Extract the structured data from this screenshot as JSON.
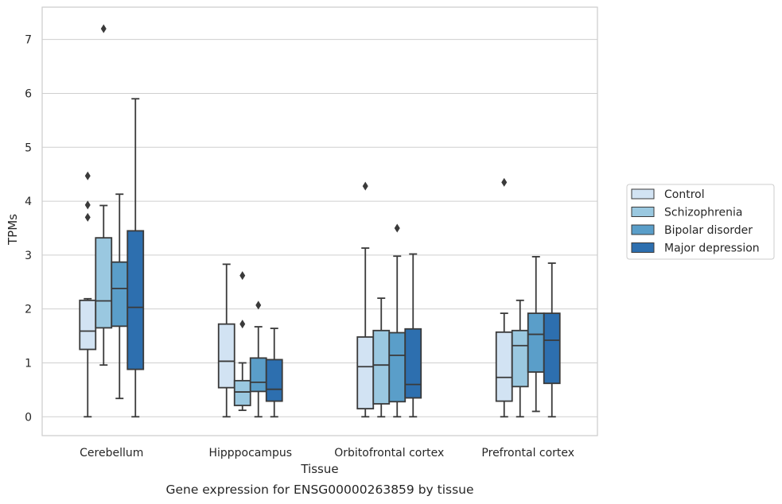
{
  "chart_data": {
    "type": "box",
    "title": "",
    "caption": "Gene expression for ENSG00000263859 by tissue",
    "xlabel": "Tissue",
    "ylabel": "TPMs",
    "ylim": [
      -0.35,
      7.6
    ],
    "yticks": [
      0,
      1,
      2,
      3,
      4,
      5,
      6,
      7
    ],
    "grid": "horizontal",
    "legend_position": "right",
    "categories": [
      "Cerebellum",
      "Hipppocampus",
      "Orbitofrontal cortex",
      "Prefrontal cortex"
    ],
    "series": [
      {
        "name": "Control",
        "color": "#d2e3f3",
        "boxes": [
          {
            "whislo": 0.0,
            "q1": 1.25,
            "med": 1.59,
            "q3": 2.16,
            "whishi": 2.19,
            "fliers": [
              3.7,
              3.93,
              4.47
            ]
          },
          {
            "whislo": 0.0,
            "q1": 0.54,
            "med": 1.03,
            "q3": 1.72,
            "whishi": 2.83,
            "fliers": []
          },
          {
            "whislo": 0.0,
            "q1": 0.15,
            "med": 0.93,
            "q3": 1.48,
            "whishi": 3.13,
            "fliers": [
              4.28
            ]
          },
          {
            "whislo": 0.0,
            "q1": 0.29,
            "med": 0.73,
            "q3": 1.57,
            "whishi": 1.92,
            "fliers": [
              4.35
            ]
          }
        ]
      },
      {
        "name": "Schizophrenia",
        "color": "#9ac8e0",
        "boxes": [
          {
            "whislo": 0.96,
            "q1": 1.65,
            "med": 2.15,
            "q3": 3.32,
            "whishi": 3.92,
            "fliers": [
              7.2
            ]
          },
          {
            "whislo": 0.12,
            "q1": 0.21,
            "med": 0.46,
            "q3": 0.67,
            "whishi": 1.0,
            "fliers": [
              1.72,
              2.62
            ]
          },
          {
            "whislo": 0.0,
            "q1": 0.24,
            "med": 0.96,
            "q3": 1.6,
            "whishi": 2.2,
            "fliers": []
          },
          {
            "whislo": 0.0,
            "q1": 0.56,
            "med": 1.32,
            "q3": 1.6,
            "whishi": 2.16,
            "fliers": []
          }
        ]
      },
      {
        "name": "Bipolar disorder",
        "color": "#5a9ec9",
        "boxes": [
          {
            "whislo": 0.34,
            "q1": 1.68,
            "med": 2.38,
            "q3": 2.87,
            "whishi": 4.13,
            "fliers": []
          },
          {
            "whislo": 0.0,
            "q1": 0.47,
            "med": 0.64,
            "q3": 1.09,
            "whishi": 1.67,
            "fliers": [
              2.07
            ]
          },
          {
            "whislo": 0.0,
            "q1": 0.28,
            "med": 1.14,
            "q3": 1.56,
            "whishi": 2.98,
            "fliers": [
              3.5
            ]
          },
          {
            "whislo": 0.1,
            "q1": 0.83,
            "med": 1.53,
            "q3": 1.92,
            "whishi": 2.97,
            "fliers": []
          }
        ]
      },
      {
        "name": "Major depression",
        "color": "#2d6faf",
        "boxes": [
          {
            "whislo": 0.0,
            "q1": 0.88,
            "med": 2.03,
            "q3": 3.45,
            "whishi": 5.9,
            "fliers": []
          },
          {
            "whislo": 0.0,
            "q1": 0.29,
            "med": 0.51,
            "q3": 1.06,
            "whishi": 1.64,
            "fliers": []
          },
          {
            "whislo": 0.0,
            "q1": 0.35,
            "med": 0.6,
            "q3": 1.63,
            "whishi": 3.02,
            "fliers": []
          },
          {
            "whislo": 0.0,
            "q1": 0.62,
            "med": 1.42,
            "q3": 1.92,
            "whishi": 2.85,
            "fliers": []
          }
        ]
      }
    ]
  },
  "colors": {
    "grid": "#cfcfcf",
    "frame": "#cccccc",
    "line": "#3a3a3a",
    "text": "#262626"
  }
}
